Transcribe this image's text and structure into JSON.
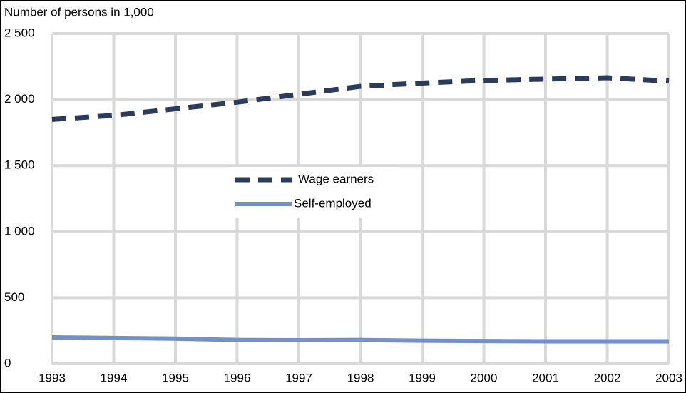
{
  "chart_data": {
    "type": "line",
    "y_axis_label": "Number of persons in 1,000",
    "x": [
      1993,
      1994,
      1995,
      1996,
      1997,
      1998,
      1999,
      2000,
      2001,
      2002,
      2003
    ],
    "series": [
      {
        "name": "Wage earners",
        "color": "#2c3a5c",
        "dash": true,
        "values": [
          1850,
          1880,
          1930,
          1980,
          2040,
          2100,
          2125,
          2145,
          2155,
          2165,
          2140
        ]
      },
      {
        "name": "Self-employed",
        "color": "#7191c9",
        "dash": false,
        "values": [
          200,
          195,
          190,
          180,
          178,
          180,
          175,
          172,
          170,
          170,
          170
        ]
      }
    ],
    "xlim": [
      1993,
      2003
    ],
    "xticks": [
      1993,
      1994,
      1995,
      1996,
      1997,
      1998,
      1999,
      2000,
      2001,
      2002,
      2003
    ],
    "ylim": [
      0,
      2500
    ],
    "yticks": [
      0,
      500,
      {
        "value": 1000,
        "label": "1 000"
      },
      {
        "value": 1500,
        "label": "1 500"
      },
      {
        "value": 2000,
        "label": "2 000"
      },
      {
        "value": 2500,
        "label": "2 500"
      }
    ],
    "grid": true,
    "legend": "center"
  }
}
